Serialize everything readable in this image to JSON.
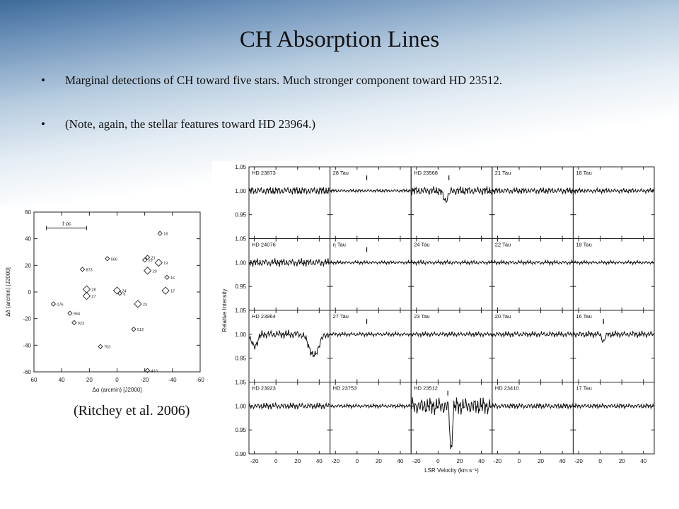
{
  "slide": {
    "title": "CH Absorption Lines",
    "bullets": [
      "Marginal detections of CH toward five stars. Much stronger component toward HD 23512.",
      "(Note, again, the stellar features toward HD 23964.)"
    ],
    "bullet_symbol": "•",
    "citation": "(Ritchey et al. 2006)"
  },
  "chart_data": [
    {
      "type": "scatter",
      "title": "",
      "xlabel": "Δα (arcmin) [J2000]",
      "ylabel": "Δδ (arcmin) [J2000]",
      "xlim": [
        60,
        -60
      ],
      "ylim": [
        -60,
        60
      ],
      "x_ticks": [
        60,
        40,
        20,
        0,
        -20,
        -40,
        -60
      ],
      "y_ticks": [
        -60,
        -40,
        -20,
        0,
        20,
        40,
        60
      ],
      "scale_bar_label": "1 pc",
      "marker": "diamond",
      "points": [
        {
          "label": "18",
          "x": -31,
          "y": 44,
          "large": false
        },
        {
          "label": "21",
          "x": -22,
          "y": 26,
          "large": false
        },
        {
          "label": "22",
          "x": -20,
          "y": 24,
          "large": false
        },
        {
          "label": "19",
          "x": -30,
          "y": 22,
          "large": true
        },
        {
          "label": "20",
          "x": -22,
          "y": 16,
          "large": true
        },
        {
          "label": "16",
          "x": -36,
          "y": 11,
          "large": false
        },
        {
          "label": "17",
          "x": -35,
          "y": 1,
          "large": true
        },
        {
          "label": "566",
          "x": 7,
          "y": 25,
          "large": false
        },
        {
          "label": "873",
          "x": 25,
          "y": 17,
          "large": false
        },
        {
          "label": "28",
          "x": 22,
          "y": 2,
          "large": true
        },
        {
          "label": "27",
          "x": 22,
          "y": -3,
          "large": true
        },
        {
          "label": "24",
          "x": 0,
          "y": 1,
          "large": true
        },
        {
          "label": "η",
          "x": -2,
          "y": -1,
          "large": false
        },
        {
          "label": "23",
          "x": -15,
          "y": -9,
          "large": true
        },
        {
          "label": "076",
          "x": 46,
          "y": -9,
          "large": false
        },
        {
          "label": "964",
          "x": 34,
          "y": -16,
          "large": false
        },
        {
          "label": "923",
          "x": 31,
          "y": -23,
          "large": false
        },
        {
          "label": "512",
          "x": -12,
          "y": -28,
          "large": false
        },
        {
          "label": "753",
          "x": 12,
          "y": -41,
          "large": false
        },
        {
          "label": "410",
          "x": -22,
          "y": -59,
          "large": false
        }
      ]
    },
    {
      "type": "line",
      "title": "",
      "xlabel": "LSR Velocity (km s⁻¹)",
      "ylabel": "Relative Intensity",
      "xlim": [
        -25,
        50
      ],
      "ylim": [
        0.9,
        1.05
      ],
      "x_ticks": [
        -20,
        0,
        20,
        40
      ],
      "y_ticks": [
        1.05,
        1.0,
        0.95,
        0.9
      ],
      "panels": [
        {
          "star": "HD 23873",
          "row": 0,
          "col": 0,
          "noise": 0.01,
          "lines": [],
          "marker": null
        },
        {
          "star": "28 Tau",
          "row": 0,
          "col": 1,
          "noise": 0.004,
          "lines": [],
          "marker": 9
        },
        {
          "star": "HD 23568",
          "row": 0,
          "col": 2,
          "noise": 0.011,
          "lines": [
            {
              "center": 7,
              "depth": 0.02,
              "width": 3
            }
          ],
          "marker": 10
        },
        {
          "star": "21 Tau",
          "row": 0,
          "col": 3,
          "noise": 0.008,
          "lines": [],
          "marker": null
        },
        {
          "star": "18 Tau",
          "row": 0,
          "col": 4,
          "noise": 0.006,
          "lines": [],
          "marker": null
        },
        {
          "star": "HD 24076",
          "row": 1,
          "col": 0,
          "noise": 0.01,
          "lines": [],
          "marker": null
        },
        {
          "star": "η Tau",
          "row": 1,
          "col": 1,
          "noise": 0.004,
          "lines": [],
          "marker": 9
        },
        {
          "star": "24 Tau",
          "row": 1,
          "col": 2,
          "noise": 0.005,
          "lines": [],
          "marker": null
        },
        {
          "star": "22 Tau",
          "row": 1,
          "col": 3,
          "noise": 0.005,
          "lines": [],
          "marker": null
        },
        {
          "star": "19 Tau",
          "row": 1,
          "col": 4,
          "noise": 0.004,
          "lines": [],
          "marker": null
        },
        {
          "star": "HD 23964",
          "row": 2,
          "col": 0,
          "noise": 0.01,
          "lines": [
            {
              "center": -20,
              "depth": 0.025,
              "width": 4
            },
            {
              "center": 35,
              "depth": 0.045,
              "width": 6
            }
          ],
          "marker": null
        },
        {
          "star": "27 Tau",
          "row": 2,
          "col": 1,
          "noise": 0.005,
          "lines": [],
          "marker": 9
        },
        {
          "star": "23 Tau",
          "row": 2,
          "col": 2,
          "noise": 0.006,
          "lines": [],
          "marker": null
        },
        {
          "star": "20 Tau",
          "row": 2,
          "col": 3,
          "noise": 0.007,
          "lines": [],
          "marker": null
        },
        {
          "star": "16 Tau",
          "row": 2,
          "col": 4,
          "noise": 0.008,
          "lines": [
            {
              "center": 3,
              "depth": 0.015,
              "width": 2
            }
          ],
          "marker": 3
        },
        {
          "star": "HD 23923",
          "row": 3,
          "col": 0,
          "noise": 0.008,
          "lines": [],
          "marker": null
        },
        {
          "star": "HD 23753",
          "row": 3,
          "col": 1,
          "noise": 0.005,
          "lines": [],
          "marker": null
        },
        {
          "star": "HD 23512",
          "row": 3,
          "col": 2,
          "noise": 0.022,
          "lines": [
            {
              "center": 12,
              "depth": 0.095,
              "width": 1.5
            }
          ],
          "marker": 9
        },
        {
          "star": "HD 23410",
          "row": 3,
          "col": 3,
          "noise": 0.007,
          "lines": [],
          "marker": null
        },
        {
          "star": "17 Tau",
          "row": 3,
          "col": 4,
          "noise": 0.006,
          "lines": [],
          "marker": null
        }
      ]
    }
  ]
}
